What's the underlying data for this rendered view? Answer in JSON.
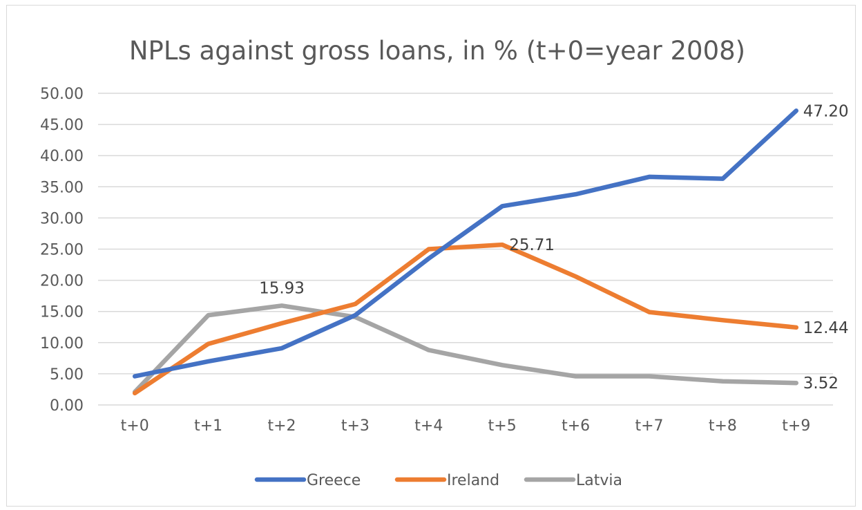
{
  "chart_data": {
    "type": "line",
    "title": "NPLs against gross loans, in % (t+0=year 2008)",
    "xlabel": "",
    "ylabel": "",
    "categories": [
      "t+0",
      "t+1",
      "t+2",
      "t+3",
      "t+4",
      "t+5",
      "t+6",
      "t+7",
      "t+8",
      "t+9"
    ],
    "ylim": [
      0,
      50
    ],
    "yticks": [
      "0.00",
      "5.00",
      "10.00",
      "15.00",
      "20.00",
      "25.00",
      "30.00",
      "35.00",
      "40.00",
      "45.00",
      "50.00"
    ],
    "grid": true,
    "legend_position": "bottom",
    "series": [
      {
        "name": "Greece",
        "color": "#4472c4",
        "values": [
          4.6,
          7.0,
          9.1,
          14.4,
          23.5,
          31.9,
          33.8,
          36.6,
          36.3,
          47.2
        ]
      },
      {
        "name": "Ireland",
        "color": "#ed7d31",
        "values": [
          1.9,
          9.8,
          13.1,
          16.2,
          25.0,
          25.71,
          20.6,
          14.9,
          13.6,
          12.44
        ]
      },
      {
        "name": "Latvia",
        "color": "#a5a5a5",
        "values": [
          2.1,
          14.4,
          15.93,
          14.1,
          8.8,
          6.4,
          4.6,
          4.6,
          3.8,
          3.52
        ]
      }
    ],
    "annotations": [
      {
        "text": "47.20",
        "series": "Greece",
        "index": 9,
        "placement": "right"
      },
      {
        "text": "25.71",
        "series": "Ireland",
        "index": 5,
        "placement": "right"
      },
      {
        "text": "12.44",
        "series": "Ireland",
        "index": 9,
        "placement": "right"
      },
      {
        "text": "15.93",
        "series": "Latvia",
        "index": 2,
        "placement": "above"
      },
      {
        "text": "3.52",
        "series": "Latvia",
        "index": 9,
        "placement": "right"
      }
    ]
  }
}
